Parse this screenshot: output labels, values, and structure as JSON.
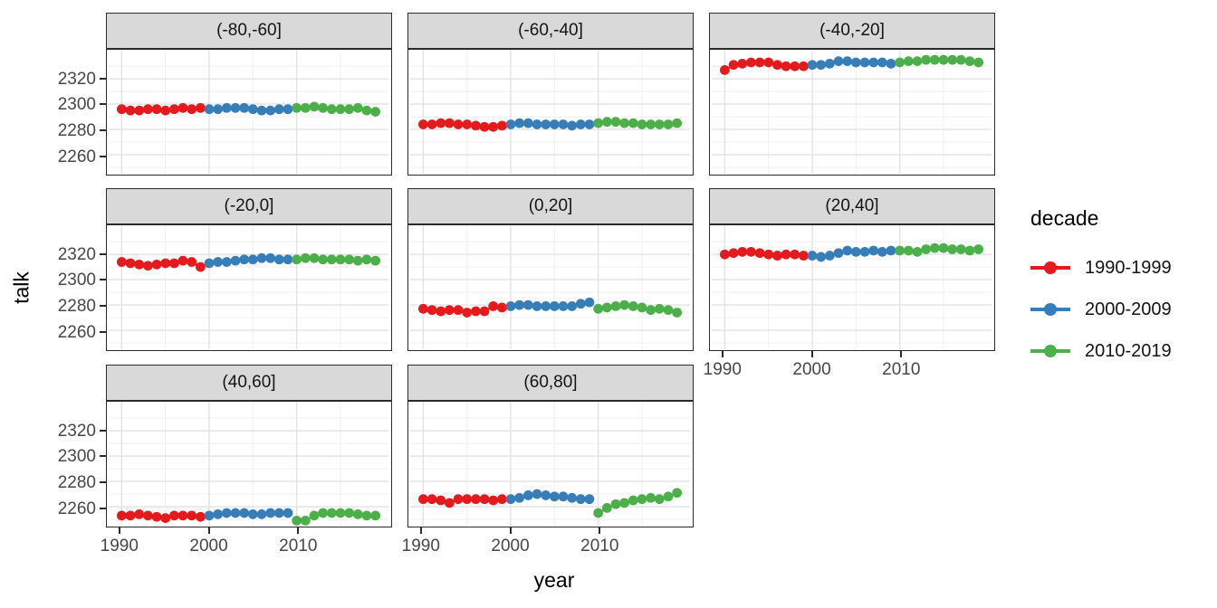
{
  "chart_data": {
    "type": "scatter",
    "title": "",
    "xlabel": "year",
    "ylabel": "talk",
    "grid": true,
    "legend_position": "right",
    "x_ticks": [
      1990,
      2000,
      2010
    ],
    "y_ticks": [
      2260,
      2280,
      2300,
      2320
    ],
    "x_minor_ticks": [
      1995,
      2005,
      2015
    ],
    "y_minor_ticks": [
      2250,
      2270,
      2290,
      2310,
      2330
    ],
    "x_range": [
      1988.5,
      2020.5
    ],
    "y_range": [
      2245,
      2343
    ],
    "years": [
      1990,
      1991,
      1992,
      1993,
      1994,
      1995,
      1996,
      1997,
      1998,
      1999,
      2000,
      2001,
      2002,
      2003,
      2004,
      2005,
      2006,
      2007,
      2008,
      2009,
      2010,
      2011,
      2012,
      2013,
      2014,
      2015,
      2016,
      2017,
      2018,
      2019
    ],
    "legend": {
      "title": "decade",
      "entries": [
        {
          "label": "1990-1999",
          "color": "#E41A1C"
        },
        {
          "label": "2000-2009",
          "color": "#377EB8"
        },
        {
          "label": "2010-2019",
          "color": "#4DAF4A"
        }
      ]
    },
    "facets": [
      {
        "label": "(-80,-60]",
        "series": [
          {
            "name": "1990-1999",
            "values": [
              2296,
              2295,
              2295,
              2296,
              2296,
              2295,
              2296,
              2297,
              2296,
              2297
            ]
          },
          {
            "name": "2000-2009",
            "values": [
              2296,
              2296,
              2297,
              2297,
              2297,
              2296,
              2295,
              2295,
              2296,
              2296
            ]
          },
          {
            "name": "2010-2019",
            "values": [
              2297,
              2297,
              2298,
              2297,
              2296,
              2296,
              2296,
              2297,
              2295,
              2294
            ]
          }
        ]
      },
      {
        "label": "(-60,-40]",
        "series": [
          {
            "name": "1990-1999",
            "values": [
              2284,
              2284,
              2285,
              2285,
              2284,
              2284,
              2283,
              2282,
              2282,
              2283
            ]
          },
          {
            "name": "2000-2009",
            "values": [
              2284,
              2285,
              2285,
              2284,
              2284,
              2284,
              2284,
              2283,
              2284,
              2284
            ]
          },
          {
            "name": "2010-2019",
            "values": [
              2285,
              2286,
              2286,
              2285,
              2285,
              2284,
              2284,
              2284,
              2284,
              2285
            ]
          }
        ]
      },
      {
        "label": "(-40,-20]",
        "series": [
          {
            "name": "1990-1999",
            "values": [
              2327,
              2331,
              2332,
              2333,
              2333,
              2333,
              2331,
              2330,
              2330,
              2330
            ]
          },
          {
            "name": "2000-2009",
            "values": [
              2331,
              2331,
              2332,
              2334,
              2334,
              2333,
              2333,
              2333,
              2333,
              2332
            ]
          },
          {
            "name": "2010-2019",
            "values": [
              2333,
              2334,
              2334,
              2335,
              2335,
              2335,
              2335,
              2335,
              2334,
              2333
            ]
          }
        ]
      },
      {
        "label": "(-20,0]",
        "series": [
          {
            "name": "1990-1999",
            "values": [
              2314,
              2313,
              2312,
              2311,
              2312,
              2313,
              2313,
              2315,
              2314,
              2310
            ]
          },
          {
            "name": "2000-2009",
            "values": [
              2313,
              2314,
              2314,
              2315,
              2316,
              2316,
              2317,
              2317,
              2316,
              2316
            ]
          },
          {
            "name": "2010-2019",
            "values": [
              2316,
              2317,
              2317,
              2316,
              2316,
              2316,
              2316,
              2315,
              2316,
              2315
            ]
          }
        ]
      },
      {
        "label": "(0,20]",
        "series": [
          {
            "name": "1990-1999",
            "values": [
              2277,
              2276,
              2275,
              2276,
              2276,
              2274,
              2275,
              2275,
              2279,
              2278
            ]
          },
          {
            "name": "2000-2009",
            "values": [
              2279,
              2280,
              2280,
              2279,
              2279,
              2279,
              2279,
              2279,
              2281,
              2282
            ]
          },
          {
            "name": "2010-2019",
            "values": [
              2277,
              2278,
              2279,
              2280,
              2279,
              2278,
              2276,
              2277,
              2276,
              2274
            ]
          }
        ]
      },
      {
        "label": "(20,40]",
        "series": [
          {
            "name": "1990-1999",
            "values": [
              2320,
              2321,
              2322,
              2322,
              2321,
              2320,
              2319,
              2320,
              2320,
              2319
            ]
          },
          {
            "name": "2000-2009",
            "values": [
              2319,
              2318,
              2319,
              2321,
              2323,
              2322,
              2322,
              2323,
              2322,
              2323
            ]
          },
          {
            "name": "2010-2019",
            "values": [
              2323,
              2323,
              2322,
              2324,
              2325,
              2325,
              2324,
              2324,
              2323,
              2324
            ]
          }
        ]
      },
      {
        "label": "(40,60]",
        "series": [
          {
            "name": "1990-1999",
            "values": [
              2253,
              2253,
              2254,
              2253,
              2252,
              2251,
              2253,
              2253,
              2253,
              2252
            ]
          },
          {
            "name": "2000-2009",
            "values": [
              2253,
              2254,
              2255,
              2255,
              2255,
              2254,
              2254,
              2255,
              2255,
              2255
            ]
          },
          {
            "name": "2010-2019",
            "values": [
              2249,
              2249,
              2253,
              2255,
              2255,
              2255,
              2255,
              2254,
              2253,
              2253
            ]
          }
        ]
      },
      {
        "label": "(60,80]",
        "series": [
          {
            "name": "1990-1999",
            "values": [
              2266,
              2266,
              2265,
              2263,
              2266,
              2266,
              2266,
              2266,
              2265,
              2266
            ]
          },
          {
            "name": "2000-2009",
            "values": [
              2266,
              2267,
              2269,
              2270,
              2269,
              2268,
              2268,
              2267,
              2266,
              2266
            ]
          },
          {
            "name": "2010-2019",
            "values": [
              2255,
              2259,
              2262,
              2263,
              2265,
              2266,
              2267,
              2266,
              2268,
              2271
            ]
          }
        ]
      }
    ],
    "style": {
      "panel_border": "#2b2b2b",
      "strip_background": "#d9d9d9",
      "grid_major": "#e2e2e2",
      "grid_minor": "#efefef",
      "tick_text": "#474747"
    }
  }
}
